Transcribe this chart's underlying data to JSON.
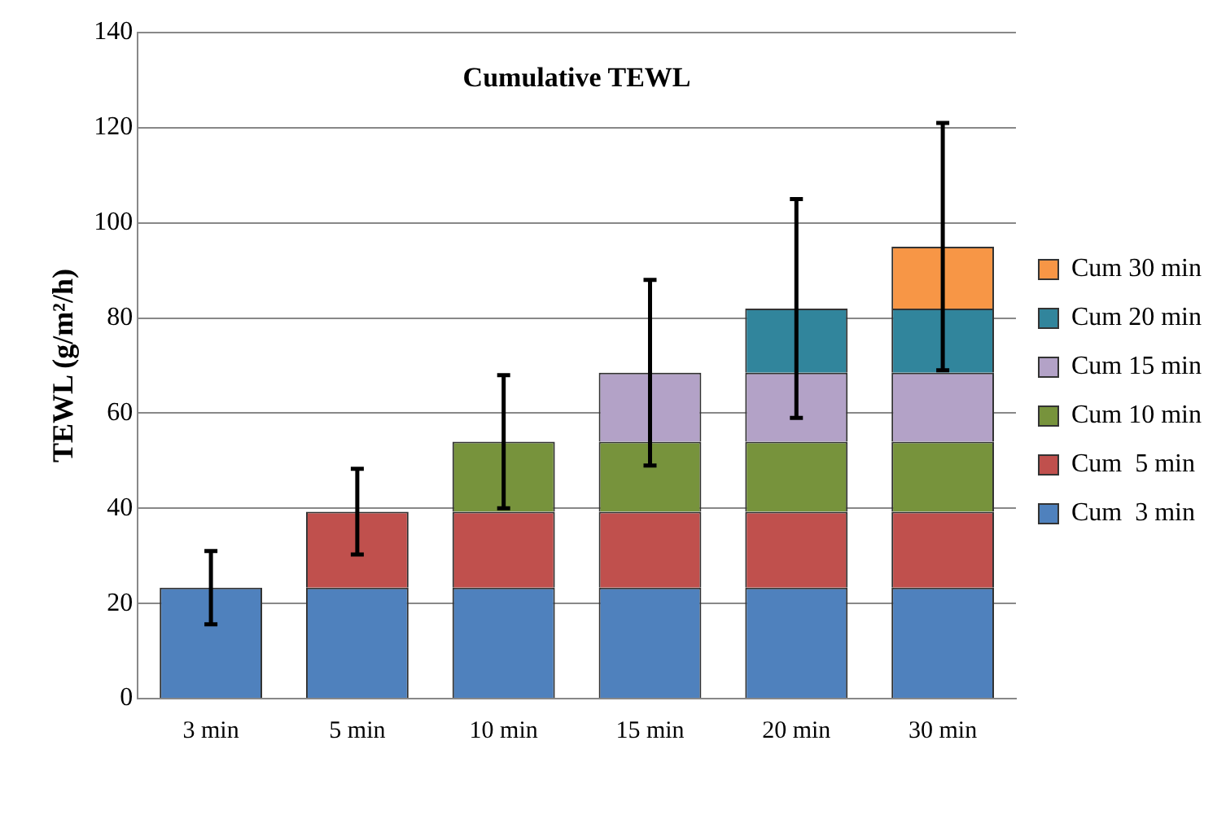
{
  "chart_data": {
    "type": "bar",
    "stacked": true,
    "title": "Cumulative TEWL",
    "ylabel": "TEWL (g/m²/h)",
    "categories": [
      "3 min",
      "5 min",
      "10 min",
      "15 min",
      "20 min",
      "30 min"
    ],
    "series": [
      {
        "name": "Cum  3 min",
        "color": "#4f81bd",
        "values": [
          23.3,
          23.3,
          23.3,
          23.3,
          23.3,
          23.3
        ],
        "errors": [
          7.7,
          null,
          null,
          null,
          null,
          null
        ]
      },
      {
        "name": "Cum  5 min",
        "color": "#c0504d",
        "values": [
          null,
          16,
          16,
          16,
          16,
          16
        ],
        "errors": [
          null,
          9,
          null,
          null,
          null,
          null
        ]
      },
      {
        "name": "Cum 10 min",
        "color": "#77933c",
        "values": [
          null,
          null,
          14.7,
          14.7,
          14.7,
          14.7
        ],
        "errors": [
          null,
          null,
          14,
          null,
          null,
          null
        ]
      },
      {
        "name": "Cum 15 min",
        "color": "#b3a2c7",
        "values": [
          null,
          null,
          null,
          14.5,
          14.5,
          14.5
        ],
        "errors": [
          null,
          null,
          null,
          19.5,
          null,
          null
        ]
      },
      {
        "name": "Cum 20 min",
        "color": "#31859c",
        "values": [
          null,
          null,
          null,
          null,
          13.5,
          13.5
        ],
        "errors": [
          null,
          null,
          null,
          null,
          23,
          null
        ]
      },
      {
        "name": "Cum 30 min",
        "color": "#f79646",
        "values": [
          null,
          null,
          null,
          null,
          null,
          13
        ],
        "errors": [
          null,
          null,
          null,
          null,
          null,
          26
        ]
      }
    ],
    "ylim": [
      0,
      140
    ],
    "yticks": [
      0,
      20,
      40,
      60,
      80,
      100,
      120,
      140
    ],
    "grid": "y",
    "legend": "right"
  }
}
